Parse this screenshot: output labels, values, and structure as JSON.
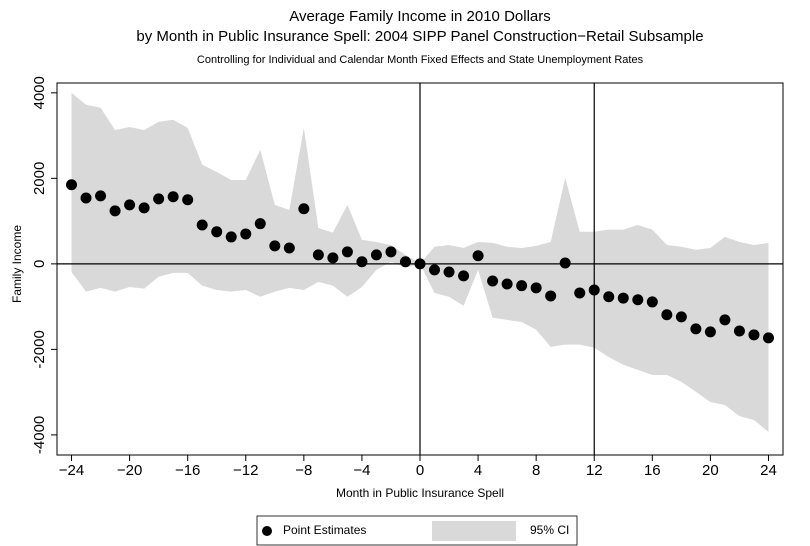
{
  "chart_data": {
    "type": "band-scatter",
    "title": [
      "Average Family Income in 2010 Dollars",
      "by Month in Public Insurance Spell: 2004 SIPP Panel Construction−Retail Subsample"
    ],
    "subtitle": "Controlling for Individual and Calendar Month Fixed Effects and State Unemployment Rates",
    "x_label": "Month in Public Insurance Spell",
    "y_label": "Family Income",
    "x": [
      -24,
      -23,
      -22,
      -21,
      -20,
      -19,
      -18,
      -17,
      -16,
      -15,
      -14,
      -13,
      -12,
      -11,
      -10,
      -9,
      -8,
      -7,
      -6,
      -5,
      -4,
      -3,
      -2,
      -1,
      0,
      1,
      2,
      3,
      4,
      5,
      6,
      7,
      8,
      9,
      10,
      11,
      12,
      13,
      14,
      15,
      16,
      17,
      18,
      19,
      20,
      21,
      22,
      23,
      24
    ],
    "series": [
      {
        "name": "Point Estimates",
        "color": "#000000",
        "values": [
          1850,
          1540,
          1590,
          1240,
          1380,
          1310,
          1520,
          1570,
          1500,
          910,
          750,
          630,
          700,
          940,
          420,
          370,
          1290,
          210,
          140,
          280,
          50,
          210,
          280,
          50,
          0,
          -140,
          -190,
          -280,
          190,
          -400,
          -470,
          -510,
          -560,
          -750,
          20,
          -680,
          -610,
          -770,
          -800,
          -840,
          -890,
          -1190,
          -1240,
          -1520,
          -1590,
          -1310,
          -1570,
          -1660,
          -1730
        ]
      },
      {
        "name": "95% CI",
        "color": "#d9d9d9",
        "upper": [
          4000,
          3720,
          3650,
          3130,
          3200,
          3130,
          3320,
          3370,
          3180,
          2320,
          2150,
          1960,
          1960,
          2670,
          1380,
          1260,
          3180,
          840,
          730,
          1380,
          560,
          510,
          440,
          210,
          0,
          400,
          440,
          370,
          510,
          490,
          400,
          370,
          420,
          510,
          2010,
          750,
          750,
          800,
          800,
          910,
          800,
          440,
          400,
          330,
          370,
          630,
          510,
          440,
          490
        ],
        "lower": [
          -190,
          -650,
          -560,
          -650,
          -540,
          -580,
          -300,
          -210,
          -210,
          -510,
          -610,
          -650,
          -610,
          -770,
          -650,
          -560,
          -610,
          -420,
          -510,
          -770,
          -540,
          -140,
          50,
          -90,
          0,
          -680,
          -770,
          -980,
          -140,
          -1260,
          -1310,
          -1360,
          -1540,
          -1940,
          -1890,
          -1890,
          -1960,
          -2180,
          -2360,
          -2480,
          -2600,
          -2600,
          -2760,
          -2990,
          -3230,
          -3300,
          -3560,
          -3650,
          -3930
        ]
      }
    ],
    "xlim": [
      -25,
      25
    ],
    "ylim": [
      -4470,
      4230
    ],
    "xticks": [
      -24,
      -20,
      -16,
      -12,
      -8,
      -4,
      0,
      4,
      8,
      12,
      16,
      20,
      24
    ],
    "yticks": [
      -4000,
      -2000,
      0,
      2000,
      4000
    ],
    "reference_lines": {
      "x": [
        0,
        12
      ],
      "y": [
        0
      ]
    },
    "legend": "bottom"
  }
}
